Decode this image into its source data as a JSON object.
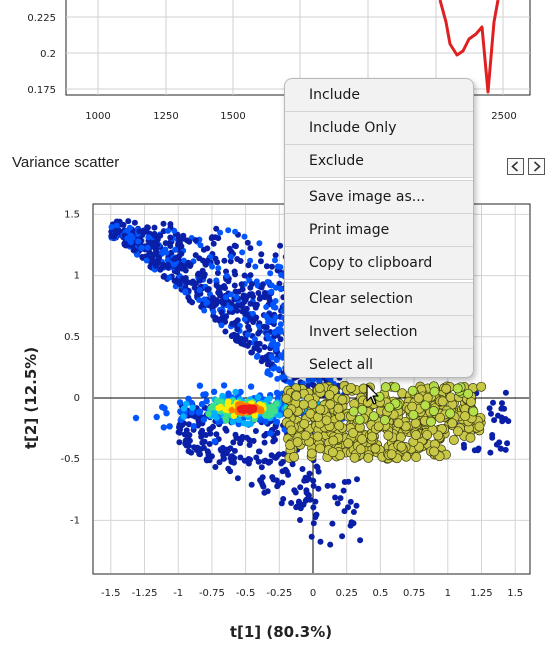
{
  "top_chart": {
    "y_ticks": [
      "0.225",
      "0.2",
      "0.175"
    ],
    "x_ticks": [
      "1000",
      "1250",
      "1500",
      "2500"
    ],
    "line_color": "#e02020"
  },
  "panel": {
    "title": "Variance scatter",
    "prev_icon": "chevron-left-icon",
    "next_icon": "chevron-right-icon"
  },
  "context_menu": {
    "items": [
      "Include",
      "Include Only",
      "Exclude",
      "Save image as...",
      "Print image",
      "Copy to clipboard",
      "Clear selection",
      "Invert selection",
      "Select all"
    ]
  },
  "chart_data": {
    "type": "scatter",
    "xlabel": "t[1] (80.3%)",
    "ylabel": "t[2] (12.5%)",
    "xlim": [
      -1.65,
      1.5
    ],
    "ylim": [
      -1.45,
      1.55
    ],
    "x_ticks": [
      "-1.5",
      "-1.25",
      "-1",
      "-0.75",
      "-0.5",
      "-0.25",
      "0",
      "0.25",
      "0.5",
      "0.75",
      "1",
      "1.25",
      "1.5"
    ],
    "y_ticks": [
      "1.5",
      "1",
      "0.5",
      "0",
      "-0.5",
      "-1"
    ],
    "grid": true,
    "density_colors": [
      "#0a1fa8",
      "#0055ff",
      "#00b0ff",
      "#3de08a",
      "#ffee00",
      "#ff7a00",
      "#ee1c1c"
    ],
    "selected_color": "#c8c846",
    "selected_region": {
      "x": [
        -0.2,
        1.25
      ],
      "y": [
        -0.5,
        0.1
      ]
    }
  }
}
